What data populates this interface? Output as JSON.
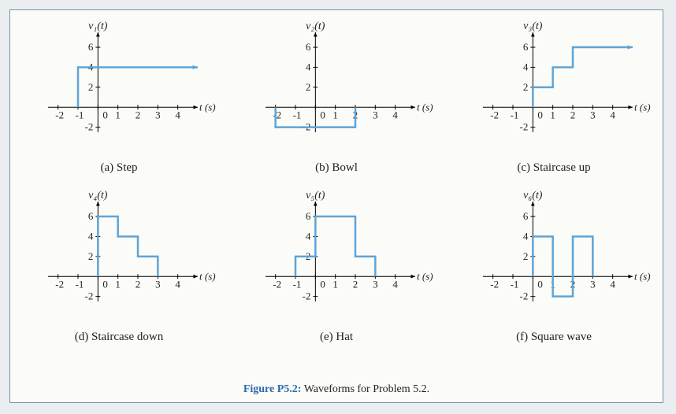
{
  "figure": {
    "label": "Figure P5.2:",
    "title": "Waveforms for Problem 5.2."
  },
  "colors": {
    "wave": "#5ea4d6",
    "axis": "#000000",
    "tick_text": "#222222",
    "panel_bg": "#fbfbf8",
    "page_bg": "#eaeef0",
    "border": "#7a93a6"
  },
  "axis": {
    "xlabel": "t (s)",
    "xticks": [
      -2,
      -1,
      0,
      1,
      2,
      3,
      4
    ],
    "yticks": [
      -2,
      2,
      4,
      6
    ],
    "xlim": [
      -2.5,
      5
    ],
    "ylim": [
      -2.5,
      7.5
    ],
    "line_width_axis": 1,
    "line_width_wave": 2.5,
    "arrow_size": 6
  },
  "plots": [
    {
      "id": "a",
      "ylabel": "v₁(t)",
      "caption": "(a) Step",
      "segments": [
        {
          "type": "line",
          "pts": [
            [
              -1,
              0
            ],
            [
              -1,
              4
            ],
            [
              5,
              4
            ]
          ],
          "arrow_end": true
        }
      ]
    },
    {
      "id": "b",
      "ylabel": "v₂(t)",
      "caption": "(b) Bowl",
      "segments": [
        {
          "type": "line",
          "pts": [
            [
              -2,
              0
            ],
            [
              -2,
              -2
            ],
            [
              2,
              -2
            ],
            [
              2,
              0
            ]
          ],
          "arrow_end": false
        }
      ]
    },
    {
      "id": "c",
      "ylabel": "v₃(t)",
      "caption": "(c) Staircase up",
      "segments": [
        {
          "type": "line",
          "pts": [
            [
              0,
              0
            ],
            [
              0,
              2
            ],
            [
              1,
              2
            ],
            [
              1,
              4
            ],
            [
              2,
              4
            ],
            [
              2,
              6
            ],
            [
              5,
              6
            ]
          ],
          "arrow_end": true
        }
      ]
    },
    {
      "id": "d",
      "ylabel": "v₄(t)",
      "caption": "(d) Staircase down",
      "segments": [
        {
          "type": "line",
          "pts": [
            [
              0,
              0
            ],
            [
              0,
              6
            ],
            [
              1,
              6
            ],
            [
              1,
              4
            ],
            [
              2,
              4
            ],
            [
              2,
              2
            ],
            [
              3,
              2
            ],
            [
              3,
              0
            ]
          ],
          "arrow_end": false
        }
      ]
    },
    {
      "id": "e",
      "ylabel": "v₅(t)",
      "caption": "(e) Hat",
      "segments": [
        {
          "type": "line",
          "pts": [
            [
              -1,
              0
            ],
            [
              -1,
              2
            ],
            [
              0,
              2
            ],
            [
              0,
              6
            ],
            [
              2,
              6
            ],
            [
              2,
              2
            ],
            [
              3,
              2
            ],
            [
              3,
              0
            ]
          ],
          "arrow_end": false
        }
      ]
    },
    {
      "id": "f",
      "ylabel": "v₆(t)",
      "caption": "(f) Square wave",
      "segments": [
        {
          "type": "line",
          "pts": [
            [
              0,
              0
            ],
            [
              0,
              4
            ],
            [
              1,
              4
            ],
            [
              1,
              -2
            ],
            [
              2,
              -2
            ],
            [
              2,
              4
            ],
            [
              3,
              4
            ],
            [
              3,
              0
            ]
          ],
          "arrow_end": false
        }
      ]
    }
  ]
}
